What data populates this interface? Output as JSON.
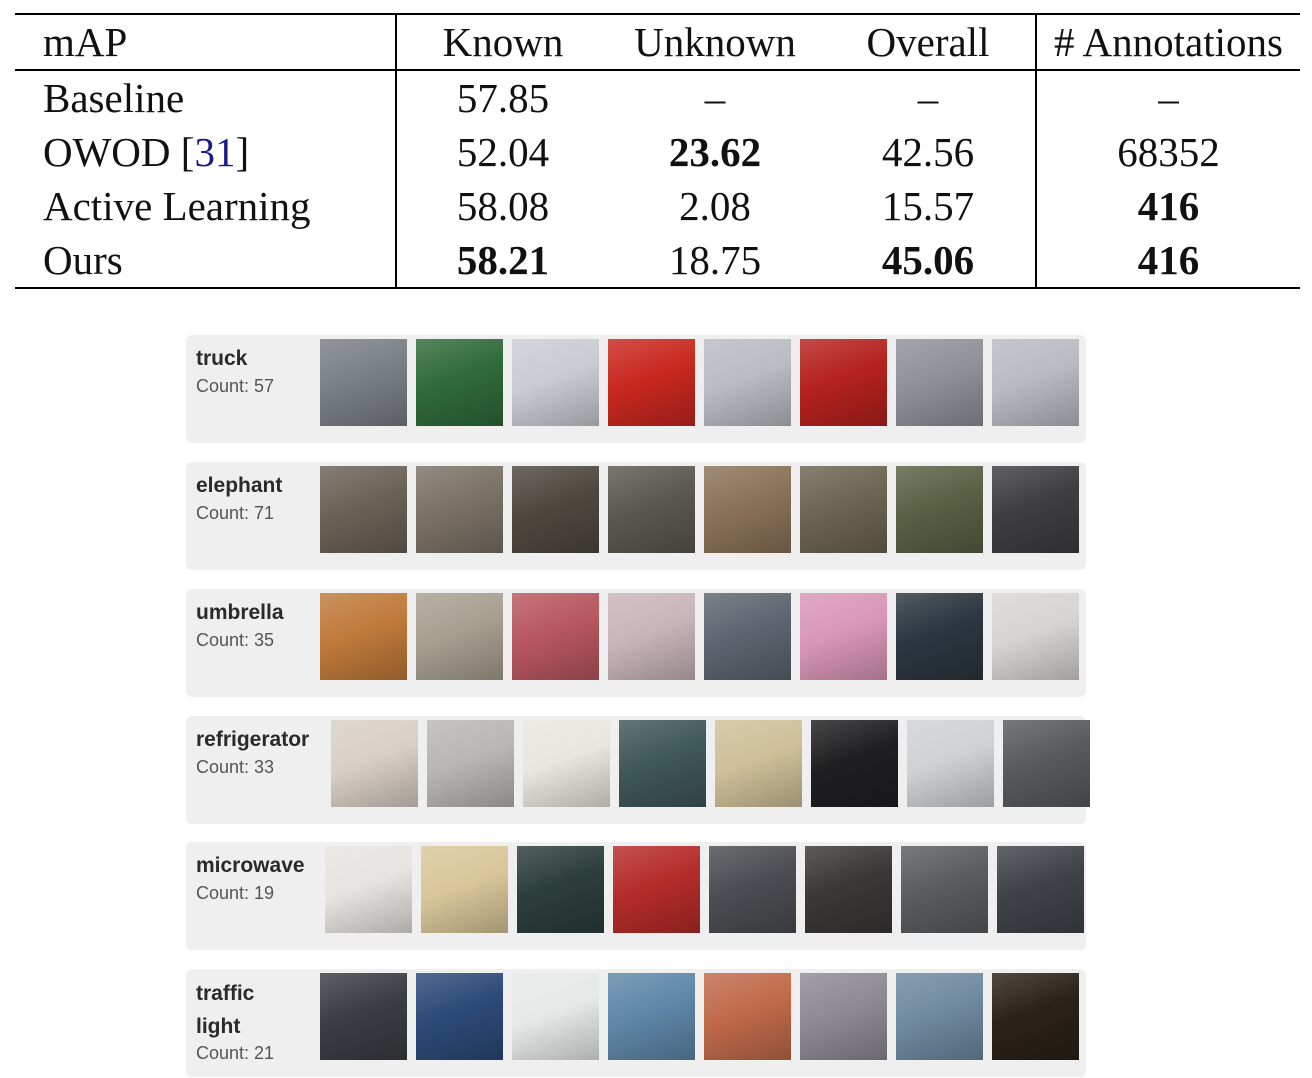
{
  "table": {
    "headers": {
      "method": "mAP",
      "known": "Known",
      "unknown": "Unknown",
      "overall": "Overall",
      "annotations": "# Annotations"
    },
    "rows": [
      {
        "method": "Baseline",
        "cite": "",
        "known": "57.85",
        "unknown": "–",
        "overall": "–",
        "annotations": "–"
      },
      {
        "method": "OWOD [",
        "cite": "31",
        "cite_close": "]",
        "known": "52.04",
        "unknown": "23.62",
        "overall": "42.56",
        "annotations": "68352"
      },
      {
        "method": "Active Learning",
        "cite": "",
        "known": "58.08",
        "unknown": "2.08",
        "overall": "15.57",
        "annotations": "416"
      },
      {
        "method": "Ours",
        "cite": "",
        "known": "58.21",
        "unknown": "18.75",
        "overall": "45.06",
        "annotations": "416"
      }
    ],
    "bold_cells": [
      "unknown-1",
      "annotations-2",
      "known-3",
      "overall-3",
      "annotations-3"
    ]
  },
  "panels": [
    {
      "name": "truck",
      "count_label": "Count: 57",
      "thumbs": [
        "#7a7f86",
        "#2f6b3a",
        "#c9ccd2",
        "#c8281f",
        "#b9bcc2",
        "#b5221d",
        "#8e9298",
        "#b8bcc2"
      ]
    },
    {
      "name": "elephant",
      "count_label": "Count: 71",
      "thumbs": [
        "#6b6257",
        "#7a7266",
        "#4e4840",
        "#5b5850",
        "#8a7258",
        "#6d6452",
        "#5a6044",
        "#3e3e42"
      ]
    },
    {
      "name": "umbrella",
      "count_label": "Count: 35",
      "thumbs": [
        "#c07a3a",
        "#a89f90",
        "#b8575f",
        "#c9b5b8",
        "#5e6570",
        "#d996b8",
        "#2c3640",
        "#d8d4d2"
      ]
    },
    {
      "name": "refrigerator",
      "count_label": "Count: 33",
      "thumbs": [
        "#d8d0c6",
        "#b9b6b3",
        "#e9e6df",
        "#3f5858",
        "#cfc09a",
        "#1f1f22",
        "#cfd2d4",
        "#595a5c"
      ]
    },
    {
      "name": "microwave",
      "count_label": "Count: 19",
      "thumbs": [
        "#e6e4e0",
        "#d9c79a",
        "#2c3e3c",
        "#b52c2a",
        "#4b4d52",
        "#3a3837",
        "#5a5c5e",
        "#3f4348"
      ]
    },
    {
      "name": "traffic light",
      "count_label": "Count: 21",
      "thumbs": [
        "#3a3d42",
        "#2c4a78",
        "#e7e9e8",
        "#5f87a8",
        "#c06a4a",
        "#8e8a94",
        "#6f8aa0",
        "#2a2218"
      ]
    }
  ]
}
